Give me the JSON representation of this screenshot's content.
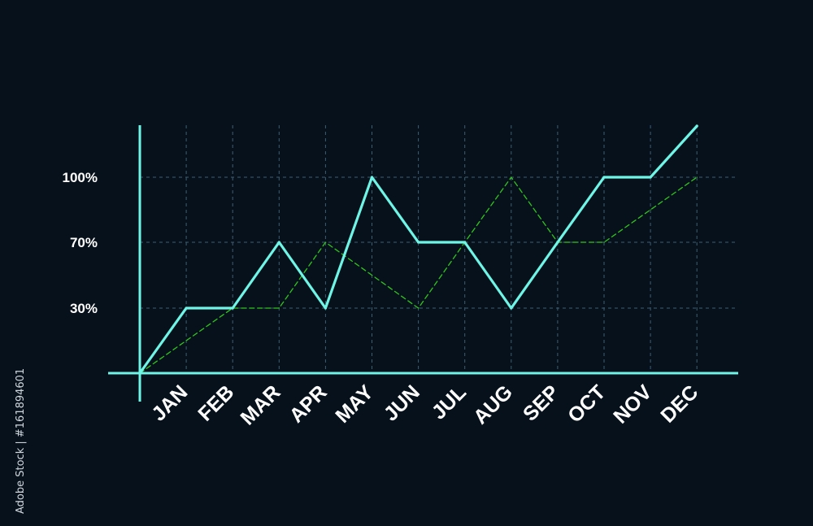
{
  "chart_data": {
    "type": "line",
    "categories": [
      "JAN",
      "FEB",
      "MAR",
      "APR",
      "MAY",
      "JUN",
      "JUL",
      "AUG",
      "SEP",
      "OCT",
      "NOV",
      "DEC"
    ],
    "y_ticks": [
      {
        "value": 30,
        "label": "30%"
      },
      {
        "value": 70,
        "label": "70%"
      },
      {
        "value": 100,
        "label": "100%"
      }
    ],
    "ylim": [
      0,
      120
    ],
    "grid": true,
    "origin_value": 0,
    "series": [
      {
        "style": "solid",
        "color": "#6ff5e6",
        "values": [
          30,
          30,
          60,
          30,
          90,
          60,
          60,
          30,
          60,
          90,
          90,
          110
        ]
      },
      {
        "style": "dashed",
        "color": "#2fc51f",
        "values": [
          15,
          30,
          30,
          60,
          45,
          30,
          60,
          90,
          60,
          60,
          75,
          90
        ]
      }
    ],
    "colors": {
      "background": "#07111b",
      "axis": "#6ff5e6",
      "grid": "#3f5e70",
      "tick_text": "#ffffff"
    }
  },
  "side_text": "Adobe Stock | #161894601"
}
